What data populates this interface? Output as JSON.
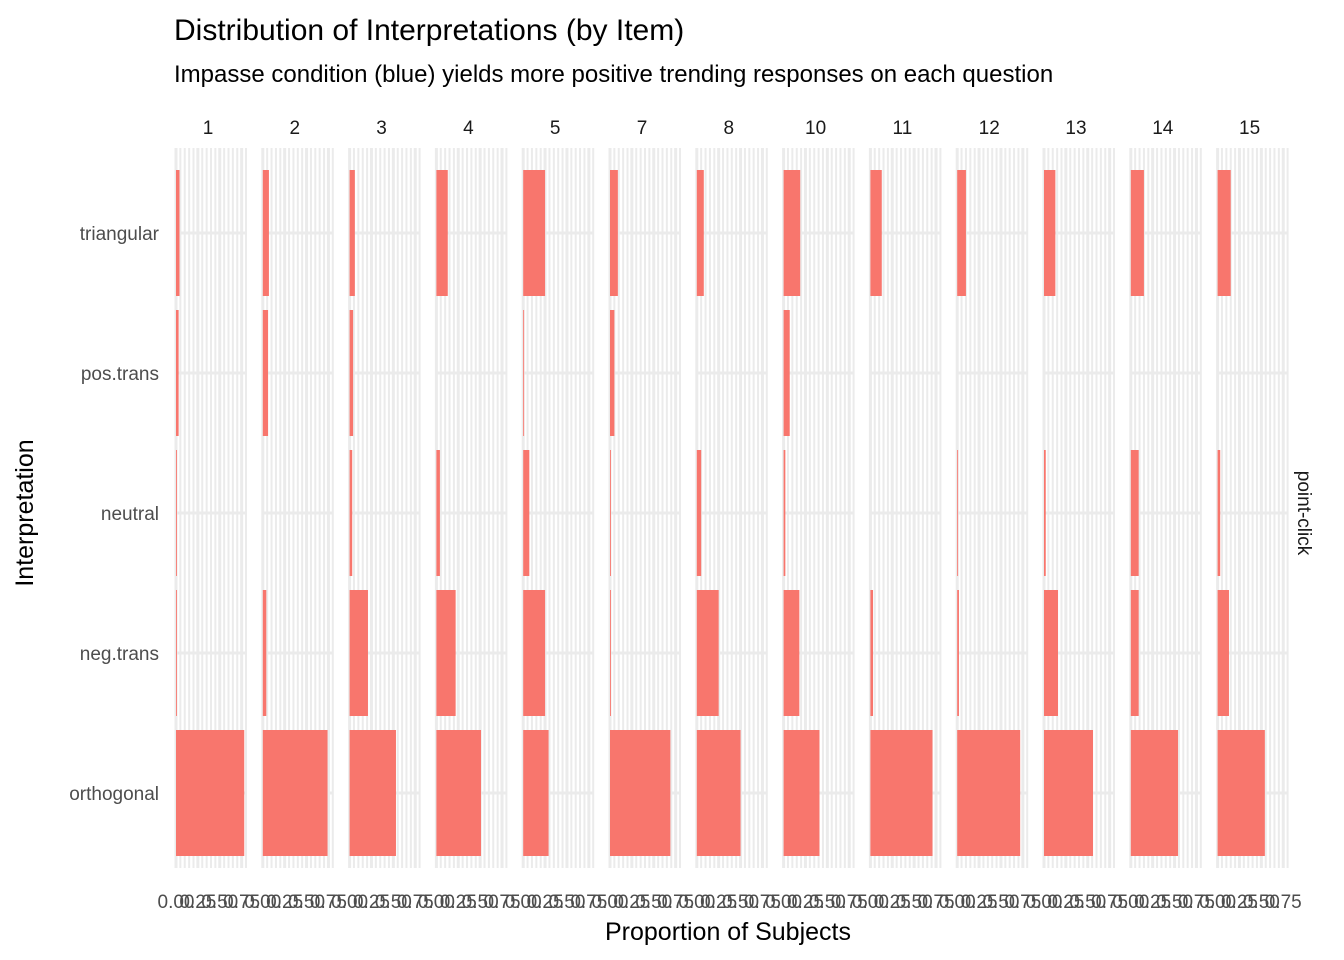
{
  "chart_data": {
    "type": "bar",
    "orientation": "horizontal",
    "title": "Distribution of Interpretations (by Item)",
    "subtitle": "Impasse condition (blue) yields more positive trending responses on each question",
    "xlabel": "Proportion of Subjects",
    "ylabel": "Interpretation",
    "row_facet_label": "point-click",
    "xlim": [
      0,
      0.8
    ],
    "x_ticks": [
      "0.00",
      "0.25",
      "0.50",
      "0.75"
    ],
    "categories": [
      "triangular",
      "pos.trans",
      "neutral",
      "neg.trans",
      "orthogonal"
    ],
    "bar_color": "#f8766d",
    "grid": true,
    "facets": [
      {
        "item": "1",
        "values": [
          0.04,
          0.03,
          0.01,
          0.01,
          0.78
        ]
      },
      {
        "item": "2",
        "values": [
          0.07,
          0.06,
          0.0,
          0.04,
          0.74
        ]
      },
      {
        "item": "3",
        "values": [
          0.06,
          0.04,
          0.03,
          0.21,
          0.53
        ]
      },
      {
        "item": "4",
        "values": [
          0.13,
          0.0,
          0.04,
          0.22,
          0.51
        ]
      },
      {
        "item": "5",
        "values": [
          0.25,
          0.01,
          0.07,
          0.25,
          0.29
        ]
      },
      {
        "item": "7",
        "values": [
          0.09,
          0.05,
          0.01,
          0.01,
          0.69
        ]
      },
      {
        "item": "8",
        "values": [
          0.08,
          0.0,
          0.05,
          0.25,
          0.5
        ]
      },
      {
        "item": "10",
        "values": [
          0.19,
          0.07,
          0.02,
          0.18,
          0.41
        ]
      },
      {
        "item": "11",
        "values": [
          0.13,
          0.0,
          0.0,
          0.03,
          0.71
        ]
      },
      {
        "item": "12",
        "values": [
          0.1,
          0.0,
          0.01,
          0.02,
          0.72
        ]
      },
      {
        "item": "13",
        "values": [
          0.13,
          0.0,
          0.02,
          0.16,
          0.56
        ]
      },
      {
        "item": "14",
        "values": [
          0.15,
          0.0,
          0.09,
          0.09,
          0.54
        ]
      },
      {
        "item": "15",
        "values": [
          0.15,
          0.0,
          0.03,
          0.13,
          0.54
        ]
      }
    ]
  }
}
